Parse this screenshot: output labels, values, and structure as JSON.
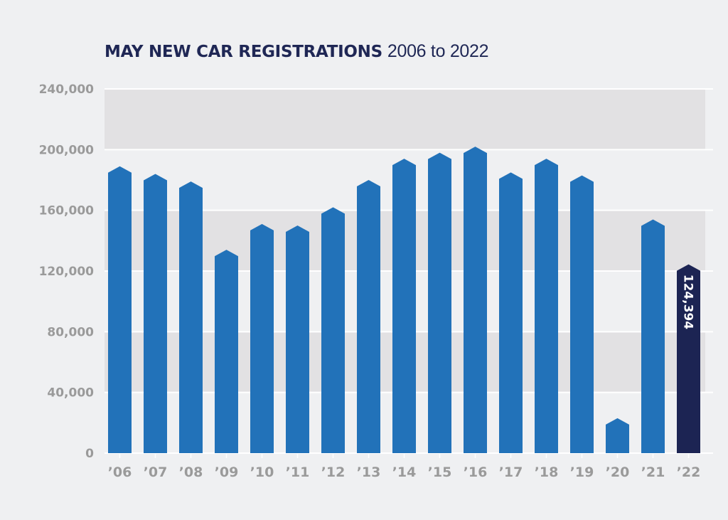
{
  "chart_data": {
    "type": "bar",
    "title": "MAY NEW CAR REGISTRATIONS",
    "subtitle": "2006 to 2022",
    "xlabel": "",
    "ylabel": "",
    "ylim": [
      0,
      240000
    ],
    "yticks": [
      0,
      40000,
      80000,
      120000,
      160000,
      200000,
      240000
    ],
    "ytick_labels": [
      "0",
      "40,000",
      "80,000",
      "120,000",
      "160,000",
      "200,000",
      "240,000"
    ],
    "grid": true,
    "categories": [
      "’06",
      "’07",
      "’08",
      "’09",
      "’10",
      "’11",
      "’12",
      "’13",
      "’14",
      "’15",
      "’16",
      "’17",
      "’18",
      "’19",
      "’20",
      "’21",
      "’22"
    ],
    "values": [
      189000,
      184000,
      179000,
      134000,
      151000,
      150000,
      162000,
      180000,
      194000,
      198000,
      202000,
      185000,
      194000,
      183000,
      23000,
      154000,
      124394
    ],
    "highlight_index": 16,
    "data_labels": [
      {
        "index": 16,
        "text": "124,394"
      }
    ],
    "colors": {
      "bar": "#2272b9",
      "highlight": "#1c2453",
      "band": "#e2e1e3",
      "axis_text": "#9a9a9a",
      "title": "#1f2755"
    }
  }
}
